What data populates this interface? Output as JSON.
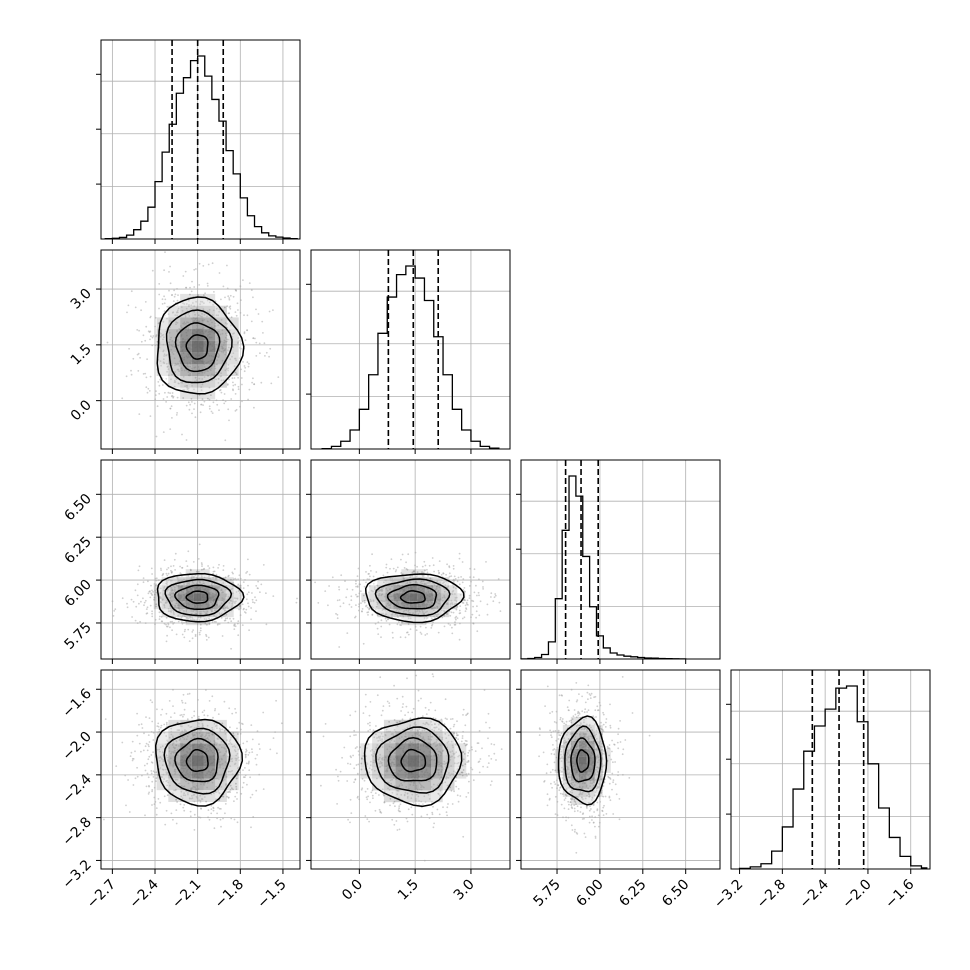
{
  "chart_data": {
    "type": "corner",
    "parameters": 4,
    "grid": true,
    "axes": [
      {
        "range": [
          -2.78,
          -1.38
        ],
        "ticks": [
          -2.7,
          -2.4,
          -2.1,
          -1.8,
          -1.5
        ],
        "tick_labels": [
          "−2.7",
          "−2.4",
          "−2.1",
          "−1.8",
          "−1.5"
        ],
        "mean": -2.1,
        "sd": 0.15,
        "quantiles": [
          -2.28,
          -2.1,
          -1.92
        ]
      },
      {
        "range": [
          -1.3,
          4.05
        ],
        "ticks": [
          0.0,
          1.5,
          3.0
        ],
        "tick_labels": [
          "0.0",
          "1.5",
          "3.0"
        ],
        "mean": 1.45,
        "sd": 0.65,
        "quantiles": [
          0.78,
          1.45,
          2.12
        ]
      },
      {
        "range": [
          5.54,
          6.7
        ],
        "ticks": [
          5.75,
          6.0,
          6.25,
          6.5
        ],
        "tick_labels": [
          "5.75",
          "6.00",
          "6.25",
          "6.50"
        ],
        "mean": 5.9,
        "sd": 0.07,
        "quantiles": [
          5.8,
          5.89,
          5.99
        ]
      },
      {
        "range": [
          -3.28,
          -1.42
        ],
        "ticks": [
          -3.2,
          -2.8,
          -2.4,
          -2.0,
          -1.6
        ],
        "tick_labels": [
          "−3.2",
          "−2.8",
          "−2.4",
          "−2.0",
          "−1.6"
        ],
        "mean": -2.27,
        "sd": 0.2,
        "quantiles": [
          -2.52,
          -2.27,
          -2.04
        ]
      }
    ],
    "histograms": [
      {
        "bins": [
          -2.75,
          -2.7,
          -2.65,
          -2.6,
          -2.55,
          -2.5,
          -2.45,
          -2.4,
          -2.35,
          -2.3,
          -2.25,
          -2.2,
          -2.15,
          -2.1,
          -2.05,
          -2.0,
          -1.95,
          -1.9,
          -1.85,
          -1.8,
          -1.75,
          -1.7,
          -1.65,
          -1.6,
          -1.55,
          -1.5,
          -1.45,
          -1.4
        ],
        "counts": [
          2,
          5,
          10,
          25,
          60,
          115,
          205,
          370,
          560,
          740,
          940,
          1040,
          1150,
          1180,
          1050,
          900,
          760,
          570,
          420,
          265,
          150,
          80,
          40,
          20,
          12,
          6,
          2
        ]
      },
      {
        "bins": [
          -1.0,
          -0.75,
          -0.5,
          -0.25,
          0.0,
          0.25,
          0.5,
          0.75,
          1.0,
          1.25,
          1.5,
          1.75,
          2.0,
          2.25,
          2.5,
          2.75,
          3.0,
          3.25,
          3.5,
          3.75
        ],
        "counts": [
          2,
          15,
          45,
          110,
          230,
          430,
          670,
          880,
          1010,
          1060,
          990,
          860,
          650,
          430,
          230,
          110,
          45,
          15,
          5
        ]
      },
      {
        "bins": [
          5.54,
          5.58,
          5.62,
          5.66,
          5.7,
          5.74,
          5.78,
          5.82,
          5.86,
          5.9,
          5.94,
          5.98,
          6.02,
          6.06,
          6.1,
          6.14,
          6.18,
          6.22,
          6.26,
          6.3,
          6.34,
          6.38,
          6.42,
          6.46,
          6.5
        ],
        "counts": [
          1,
          5,
          15,
          45,
          170,
          600,
          1280,
          1820,
          1620,
          1020,
          520,
          230,
          110,
          60,
          40,
          28,
          22,
          15,
          10,
          8,
          5,
          4,
          2,
          1
        ]
      },
      {
        "bins": [
          -3.2,
          -3.1,
          -3.0,
          -2.9,
          -2.8,
          -2.7,
          -2.6,
          -2.5,
          -2.4,
          -2.3,
          -2.2,
          -2.1,
          -2.0,
          -1.9,
          -1.8,
          -1.7,
          -1.6,
          -1.5,
          -1.45
        ],
        "counts": [
          3,
          10,
          25,
          85,
          200,
          380,
          560,
          680,
          760,
          860,
          870,
          700,
          500,
          290,
          150,
          60,
          15,
          5
        ]
      }
    ],
    "pairs": [
      {
        "row": 1,
        "col": 0,
        "corr": 0.0
      },
      {
        "row": 2,
        "col": 0,
        "corr": 0.0
      },
      {
        "row": 2,
        "col": 1,
        "corr": 0.0
      },
      {
        "row": 3,
        "col": 0,
        "corr": 0.0
      },
      {
        "row": 3,
        "col": 1,
        "corr": 0.0
      },
      {
        "row": 3,
        "col": 2,
        "corr": 0.0
      }
    ],
    "colors": {
      "line": "#000000",
      "grid": "#b0b0b0",
      "points": "#a8a8a8",
      "density": "#000000"
    }
  }
}
